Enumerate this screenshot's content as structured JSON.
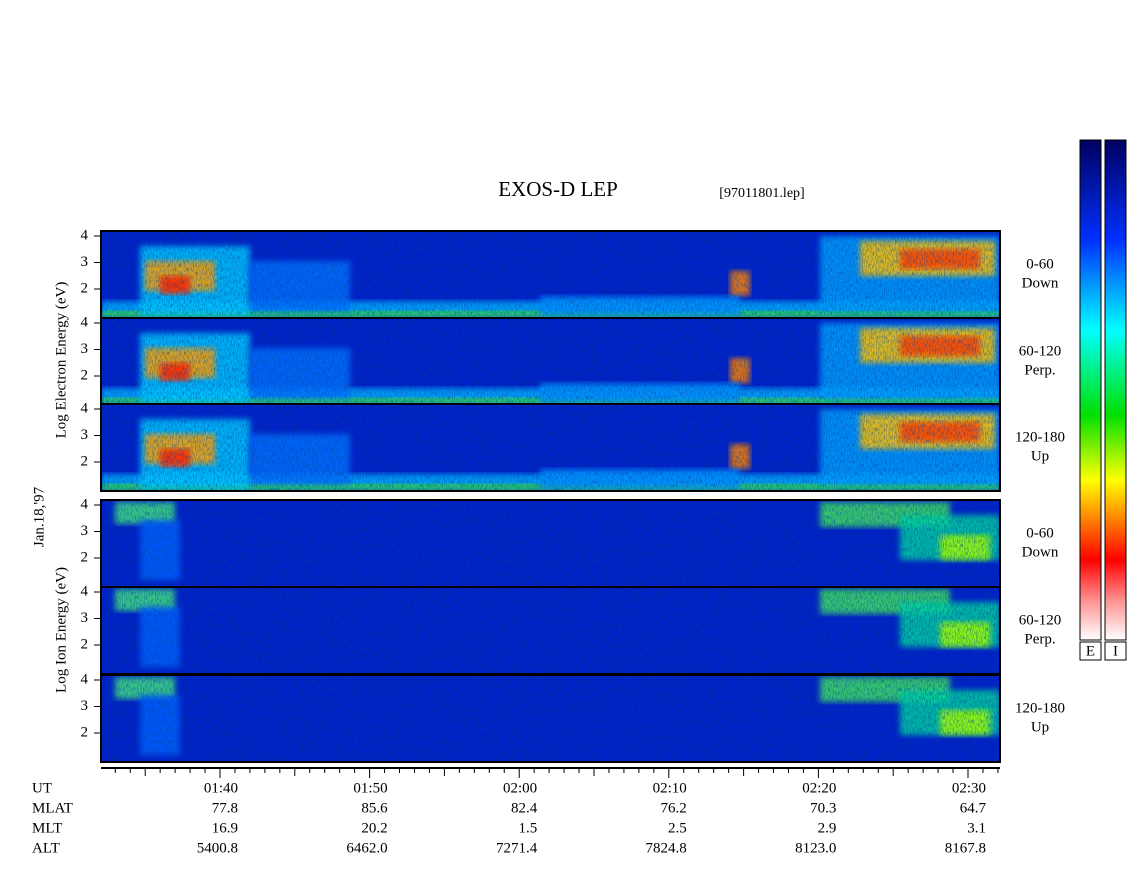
{
  "title": "EXOS-D LEP",
  "file": "[97011801.lep]",
  "electron_axis_label": "Log  Electron  Energy (eV)",
  "date": "Jan.18,'97",
  "ion_axis_label": "Log  Ion  Energy (eV)",
  "energy_ticks": [
    "4",
    "3",
    "2"
  ],
  "panels": [
    {
      "species": "electron",
      "pitch": "0-60",
      "direction": "Down"
    },
    {
      "species": "electron",
      "pitch": "60-120",
      "direction": "Perp."
    },
    {
      "species": "electron",
      "pitch": "120-180",
      "direction": "Up"
    },
    {
      "species": "ion",
      "pitch": "0-60",
      "direction": "Down"
    },
    {
      "species": "ion",
      "pitch": "60-120",
      "direction": "Perp."
    },
    {
      "species": "ion",
      "pitch": "120-180",
      "direction": "Up"
    }
  ],
  "colorbar_labels": [
    "E",
    "I"
  ],
  "ephemeris": {
    "labels": [
      "UT",
      "MLAT",
      "MLT",
      "ALT"
    ],
    "columns": [
      [
        "01:40",
        "77.8",
        "16.9",
        "5400.8"
      ],
      [
        "01:50",
        "85.6",
        "20.2",
        "6462.0"
      ],
      [
        "02:00",
        "82.4",
        "1.5",
        "7271.4"
      ],
      [
        "02:10",
        "76.2",
        "2.5",
        "7824.8"
      ],
      [
        "02:20",
        "70.3",
        "2.9",
        "8123.0"
      ],
      [
        "02:30",
        "64.7",
        "3.1",
        "8167.8"
      ]
    ]
  }
}
